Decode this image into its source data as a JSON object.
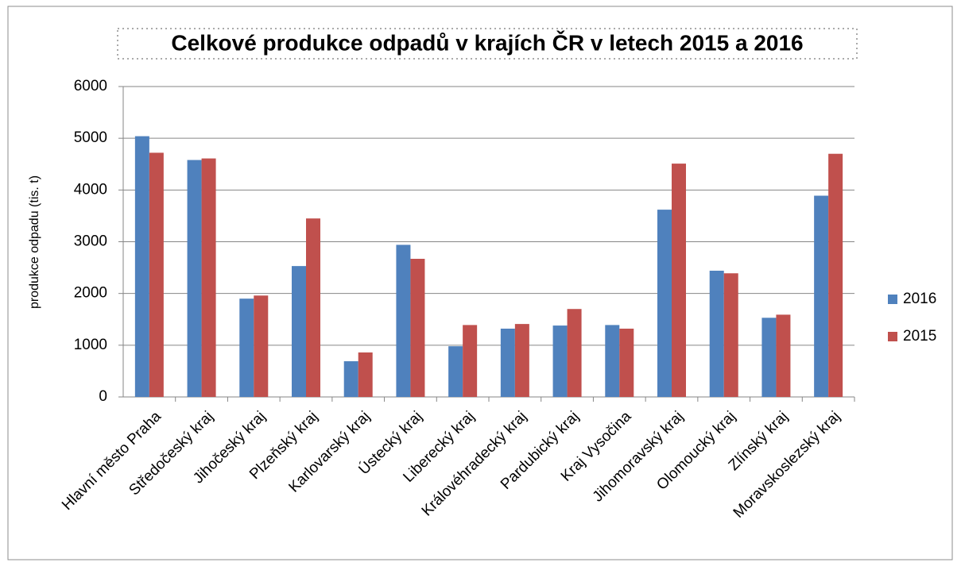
{
  "chart_data": {
    "type": "bar",
    "title": "Celkové produkce odpadů v krajích ČR v letech 2015 a 2016",
    "y_label": "produkce odpadu (tis. t)",
    "categories": [
      "Hlavní město Praha",
      "Středočeský kraj",
      "Jihočeský kraj",
      "Plzeňský kraj",
      "Karlovarský kraj",
      "Ústecký kraj",
      "Liberecký kraj",
      "Královéhradecký kraj",
      "Pardubický kraj",
      "Kraj Vysočina",
      "Jihomoravský kraj",
      "Olomoucký kraj",
      "Zlínský kraj",
      "Moravskoslezský kraj"
    ],
    "series": [
      {
        "name": "2016",
        "color": "#4f81bd",
        "values": [
          5040,
          4580,
          1900,
          2530,
          690,
          2940,
          980,
          1320,
          1380,
          1390,
          3620,
          2440,
          1530,
          3890
        ]
      },
      {
        "name": "2015",
        "color": "#c0504d",
        "values": [
          4720,
          4610,
          1960,
          3450,
          860,
          2670,
          1390,
          1410,
          1700,
          1320,
          4510,
          2390,
          1590,
          4700
        ]
      }
    ],
    "ylim": [
      0,
      6000
    ],
    "yticks": [
      0,
      1000,
      2000,
      3000,
      4000,
      5000,
      6000
    ],
    "grid": true,
    "legend": "right"
  }
}
